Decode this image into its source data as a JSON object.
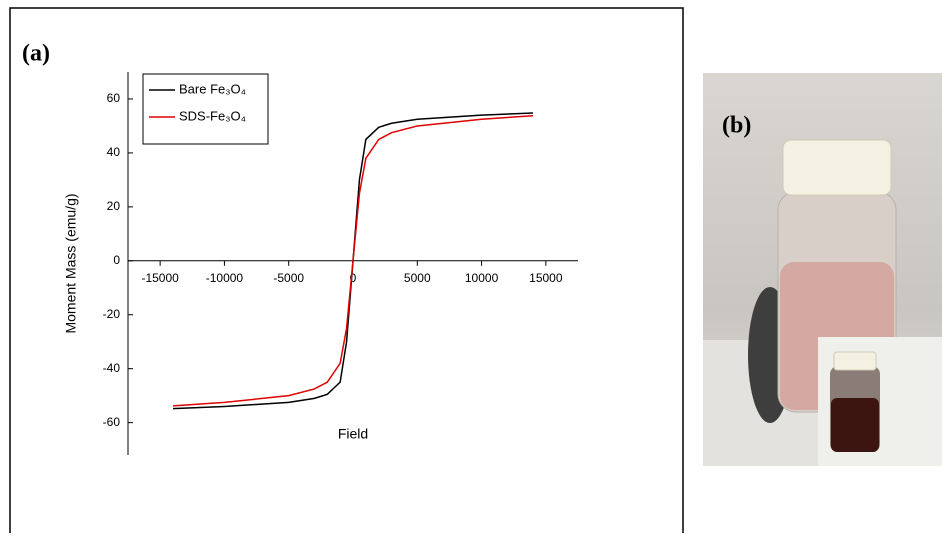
{
  "chart_data": {
    "type": "line",
    "panel_label": "(a)",
    "xlabel": "Field",
    "ylabel": "Moment Mass (emu/g)",
    "x": [
      -14000,
      -10000,
      -5000,
      -3000,
      -2000,
      -1000,
      -500,
      -200,
      0,
      200,
      500,
      1000,
      2000,
      3000,
      5000,
      10000,
      14000
    ],
    "series": [
      {
        "name": "Bare Fe₃O₄",
        "color": "#000000",
        "values": [
          -54.8,
          -54,
          -52.5,
          -51,
          -49.5,
          -45,
          -30,
          -12,
          0,
          12,
          30,
          45,
          49.5,
          51,
          52.5,
          54,
          54.8
        ]
      },
      {
        "name": "SDS-Fe₃O₄",
        "color": "#e00000",
        "values": [
          -53.8,
          -52.5,
          -50,
          -47.5,
          -45,
          -38,
          -25,
          -10,
          0,
          10,
          25,
          38,
          45,
          47.5,
          50,
          52.5,
          53.8
        ]
      }
    ],
    "xlim": [
      -17500,
      17500
    ],
    "ylim": [
      -72,
      70
    ],
    "xticks": [
      -15000,
      -10000,
      -5000,
      0,
      5000,
      10000,
      15000
    ],
    "yticks": [
      -60,
      -40,
      -20,
      0,
      20,
      40,
      60
    ],
    "legend": "upper left",
    "grid": false
  },
  "photo": {
    "panel_label": "(b)"
  }
}
